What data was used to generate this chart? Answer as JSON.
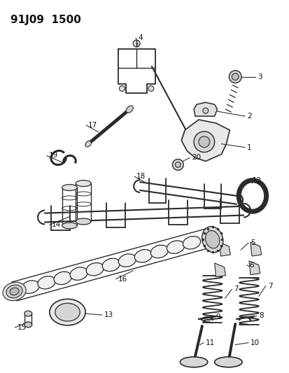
{
  "title": "91J09  1500",
  "bg_color": "#ffffff",
  "line_color": "#2a2a2a",
  "figsize": [
    4.14,
    5.33
  ],
  "dpi": 100
}
